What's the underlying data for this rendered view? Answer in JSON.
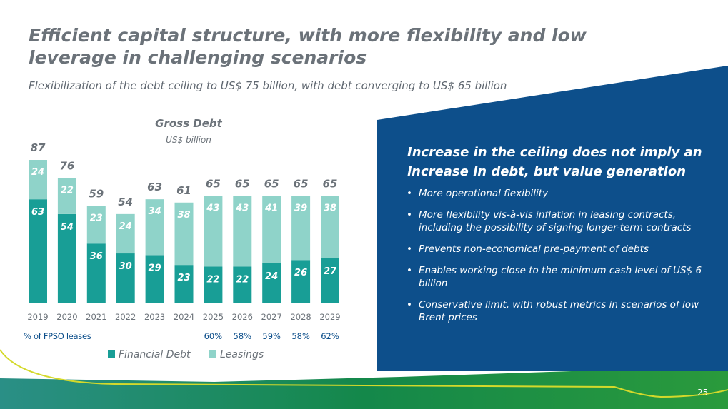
{
  "slide": {
    "title": "Efficient capital structure, with more flexibility and low leverage in challenging scenarios",
    "subtitle": "Flexibilization of the debt ceiling to US$ 75 billion, with debt converging to US$ 65 billion",
    "page_number": "25"
  },
  "colors": {
    "financial_debt": "#189e96",
    "leasings": "#8fd3c9",
    "panel_blue": "#0d4f8b",
    "green": "#0e8a4e",
    "title_gray": "#6b7279"
  },
  "panel": {
    "heading": "Increase in the ceiling does not imply an increase in debt, but value generation",
    "bullets": [
      "More operational flexibility",
      "More flexibility vis-à-vis inflation in leasing contracts, including the possibility of signing longer-term contracts",
      "Prevents non-economical pre-payment of debts",
      "Enables working close to the minimum cash level of US$ 6 billion",
      "Conservative limit, with robust metrics in scenarios of low Brent prices"
    ]
  },
  "chart_data": {
    "type": "bar",
    "stacked": true,
    "title": "Gross Debt",
    "subtitle": "US$ billion",
    "categories": [
      "2019",
      "2020",
      "2021",
      "2022",
      "2023",
      "2024",
      "2025",
      "2026",
      "2027",
      "2028",
      "2029"
    ],
    "series": [
      {
        "name": "Financial Debt",
        "values": [
          63,
          54,
          36,
          30,
          29,
          23,
          22,
          22,
          24,
          26,
          27
        ]
      },
      {
        "name": "Leasings",
        "values": [
          24,
          22,
          23,
          24,
          34,
          38,
          43,
          43,
          41,
          39,
          38
        ]
      }
    ],
    "totals": [
      87,
      76,
      59,
      54,
      63,
      61,
      65,
      65,
      65,
      65,
      65
    ],
    "ylim": [
      0,
      87
    ],
    "fpso": {
      "label": "% of FPSO leases",
      "values": [
        "",
        "",
        "",
        "",
        "",
        "",
        "60%",
        "58%",
        "59%",
        "58%",
        "62%"
      ]
    },
    "legend": [
      "Financial Debt",
      "Leasings"
    ]
  }
}
